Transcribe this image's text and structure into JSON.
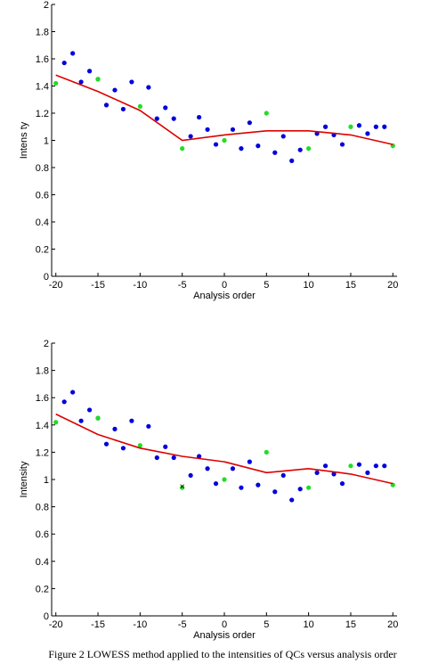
{
  "caption": "Figure 2   LOWESS method applied to the intensities of QCs versus analysis order",
  "chart_data": [
    {
      "type": "scatter",
      "xlabel": "Analysis order",
      "ylabel": "Intens ty",
      "xlim": [
        -20.5,
        20.5
      ],
      "ylim": [
        0,
        2
      ],
      "xticks": [
        -20,
        -15,
        -10,
        -5,
        0,
        5,
        10,
        15,
        20
      ],
      "yticks": [
        0,
        0.2,
        0.4,
        0.6,
        0.8,
        1,
        1.2,
        1.4,
        1.6,
        1.8,
        2
      ],
      "grid": false,
      "series": [
        {
          "kind": "points",
          "color": "#0000dd",
          "x": [
            -19,
            -18,
            -17,
            -16,
            -15,
            -14,
            -13,
            -12,
            -11,
            -9,
            -8,
            -7,
            -6,
            -4,
            -3,
            -2,
            -1,
            1,
            2,
            3,
            4,
            6,
            7,
            8,
            9,
            11,
            12,
            13,
            14,
            16,
            17,
            18,
            19
          ],
          "y": [
            1.57,
            1.64,
            1.43,
            1.51,
            1.45,
            1.26,
            1.37,
            1.23,
            1.43,
            1.39,
            1.16,
            1.24,
            1.16,
            1.03,
            1.17,
            1.08,
            0.97,
            1.08,
            0.94,
            1.13,
            0.96,
            0.91,
            1.03,
            0.85,
            0.93,
            1.05,
            1.1,
            1.04,
            0.97,
            1.11,
            1.05,
            1.1,
            1.1
          ]
        },
        {
          "kind": "points",
          "color": "#22dd22",
          "x": [
            -20,
            -15,
            -10,
            -5,
            0,
            5,
            10,
            15,
            20
          ],
          "y": [
            1.42,
            1.45,
            1.25,
            0.94,
            1.0,
            1.2,
            0.94,
            1.1,
            0.96
          ]
        },
        {
          "kind": "line",
          "color": "#dd0000",
          "x": [
            -20,
            -15,
            -10,
            -5,
            0,
            5,
            10,
            15,
            20
          ],
          "y": [
            1.48,
            1.36,
            1.22,
            1.0,
            1.04,
            1.07,
            1.07,
            1.04,
            0.97
          ]
        }
      ]
    },
    {
      "type": "scatter",
      "xlabel": "Analysis order",
      "ylabel": "Intensity",
      "xlim": [
        -20.5,
        20.5
      ],
      "ylim": [
        0,
        2
      ],
      "xticks": [
        -20,
        -15,
        -10,
        -5,
        0,
        5,
        10,
        15,
        20
      ],
      "yticks": [
        0,
        0.2,
        0.4,
        0.6,
        0.8,
        1,
        1.2,
        1.4,
        1.6,
        1.8,
        2
      ],
      "grid": false,
      "series": [
        {
          "kind": "points",
          "color": "#0000dd",
          "x": [
            -19,
            -18,
            -17,
            -16,
            -15,
            -14,
            -13,
            -12,
            -11,
            -9,
            -8,
            -7,
            -6,
            -4,
            -3,
            -2,
            -1,
            1,
            2,
            3,
            4,
            6,
            7,
            8,
            9,
            11,
            12,
            13,
            14,
            16,
            17,
            18,
            19
          ],
          "y": [
            1.57,
            1.64,
            1.43,
            1.51,
            1.45,
            1.26,
            1.37,
            1.23,
            1.43,
            1.39,
            1.16,
            1.24,
            1.16,
            1.03,
            1.17,
            1.08,
            0.97,
            1.08,
            0.94,
            1.13,
            0.96,
            0.91,
            1.03,
            0.85,
            0.93,
            1.05,
            1.1,
            1.04,
            0.97,
            1.11,
            1.05,
            1.1,
            1.1
          ]
        },
        {
          "kind": "points",
          "color": "#22dd22",
          "x": [
            -20,
            -15,
            -10,
            -5,
            0,
            5,
            10,
            15,
            20
          ],
          "y": [
            1.42,
            1.45,
            1.25,
            0.94,
            1.0,
            1.2,
            0.94,
            1.1,
            0.96
          ]
        },
        {
          "kind": "cross",
          "color": "#000000",
          "x": [
            -5
          ],
          "y": [
            0.95
          ]
        },
        {
          "kind": "line",
          "color": "#dd0000",
          "x": [
            -20,
            -15,
            -10,
            -5,
            0,
            5,
            10,
            15,
            20
          ],
          "y": [
            1.48,
            1.33,
            1.23,
            1.17,
            1.13,
            1.05,
            1.08,
            1.04,
            0.97
          ]
        }
      ]
    }
  ]
}
